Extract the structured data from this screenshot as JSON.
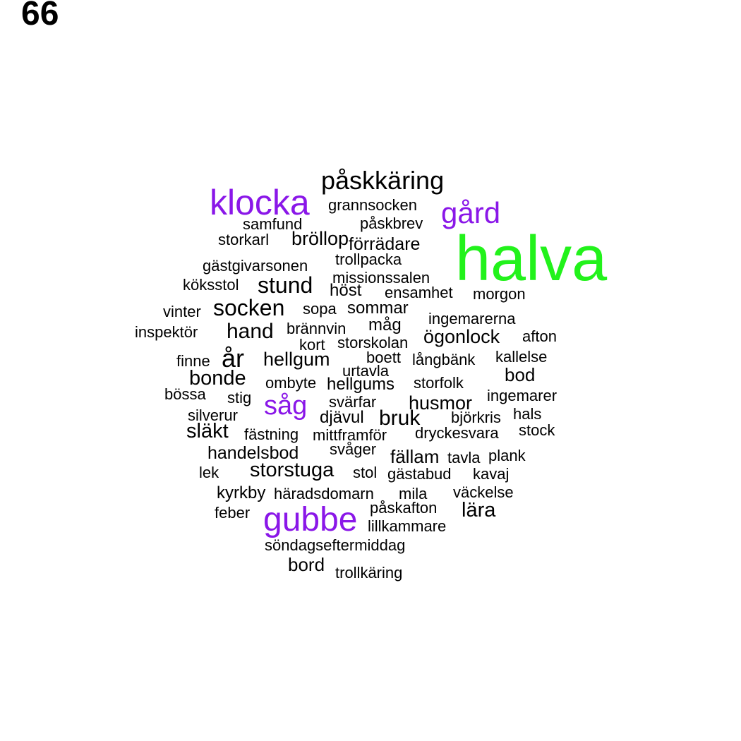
{
  "panel_label": "66",
  "colors": {
    "default": "#000000",
    "purple": "#8a17e8",
    "green": "#22f21b"
  },
  "words": [
    {
      "text": "halva",
      "color": "#22f21b"
    },
    {
      "text": "klocka",
      "color": "#8a17e8"
    },
    {
      "text": "gubbe",
      "color": "#8a17e8"
    },
    {
      "text": "gård",
      "color": "#8a17e8"
    },
    {
      "text": "såg",
      "color": "#8a17e8"
    },
    {
      "text": "påskkäring",
      "color": "#000000"
    },
    {
      "text": "grannsocken",
      "color": "#000000"
    },
    {
      "text": "samfund",
      "color": "#000000"
    },
    {
      "text": "påskbrev",
      "color": "#000000"
    },
    {
      "text": "storkarl",
      "color": "#000000"
    },
    {
      "text": "bröllop",
      "color": "#000000"
    },
    {
      "text": "förrädare",
      "color": "#000000"
    },
    {
      "text": "trollpacka",
      "color": "#000000"
    },
    {
      "text": "gästgivarsonen",
      "color": "#000000"
    },
    {
      "text": "missionssalen",
      "color": "#000000"
    },
    {
      "text": "köksstol",
      "color": "#000000"
    },
    {
      "text": "stund",
      "color": "#000000"
    },
    {
      "text": "höst",
      "color": "#000000"
    },
    {
      "text": "ensamhet",
      "color": "#000000"
    },
    {
      "text": "morgon",
      "color": "#000000"
    },
    {
      "text": "vinter",
      "color": "#000000"
    },
    {
      "text": "socken",
      "color": "#000000"
    },
    {
      "text": "sopa",
      "color": "#000000"
    },
    {
      "text": "sommar",
      "color": "#000000"
    },
    {
      "text": "ingemarerna",
      "color": "#000000"
    },
    {
      "text": "inspektör",
      "color": "#000000"
    },
    {
      "text": "hand",
      "color": "#000000"
    },
    {
      "text": "brännvin",
      "color": "#000000"
    },
    {
      "text": "måg",
      "color": "#000000"
    },
    {
      "text": "ögonlock",
      "color": "#000000"
    },
    {
      "text": "afton",
      "color": "#000000"
    },
    {
      "text": "kort",
      "color": "#000000"
    },
    {
      "text": "storskolan",
      "color": "#000000"
    },
    {
      "text": "finne",
      "color": "#000000"
    },
    {
      "text": "år",
      "color": "#000000"
    },
    {
      "text": "hellgum",
      "color": "#000000"
    },
    {
      "text": "boett",
      "color": "#000000"
    },
    {
      "text": "långbänk",
      "color": "#000000"
    },
    {
      "text": "kallelse",
      "color": "#000000"
    },
    {
      "text": "urtavla",
      "color": "#000000"
    },
    {
      "text": "bod",
      "color": "#000000"
    },
    {
      "text": "bonde",
      "color": "#000000"
    },
    {
      "text": "ombyte",
      "color": "#000000"
    },
    {
      "text": "hellgums",
      "color": "#000000"
    },
    {
      "text": "storfolk",
      "color": "#000000"
    },
    {
      "text": "bössa",
      "color": "#000000"
    },
    {
      "text": "stig",
      "color": "#000000"
    },
    {
      "text": "svärfar",
      "color": "#000000"
    },
    {
      "text": "husmor",
      "color": "#000000"
    },
    {
      "text": "ingemarer",
      "color": "#000000"
    },
    {
      "text": "silverur",
      "color": "#000000"
    },
    {
      "text": "djävul",
      "color": "#000000"
    },
    {
      "text": "bruk",
      "color": "#000000"
    },
    {
      "text": "björkris",
      "color": "#000000"
    },
    {
      "text": "hals",
      "color": "#000000"
    },
    {
      "text": "släkt",
      "color": "#000000"
    },
    {
      "text": "fästning",
      "color": "#000000"
    },
    {
      "text": "mittframför",
      "color": "#000000"
    },
    {
      "text": "dryckesvara",
      "color": "#000000"
    },
    {
      "text": "stock",
      "color": "#000000"
    },
    {
      "text": "svåger",
      "color": "#000000"
    },
    {
      "text": "handelsbod",
      "color": "#000000"
    },
    {
      "text": "fällam",
      "color": "#000000"
    },
    {
      "text": "tavla",
      "color": "#000000"
    },
    {
      "text": "plank",
      "color": "#000000"
    },
    {
      "text": "lek",
      "color": "#000000"
    },
    {
      "text": "storstuga",
      "color": "#000000"
    },
    {
      "text": "stol",
      "color": "#000000"
    },
    {
      "text": "gästabud",
      "color": "#000000"
    },
    {
      "text": "kavaj",
      "color": "#000000"
    },
    {
      "text": "kyrkby",
      "color": "#000000"
    },
    {
      "text": "häradsdomarn",
      "color": "#000000"
    },
    {
      "text": "mila",
      "color": "#000000"
    },
    {
      "text": "väckelse",
      "color": "#000000"
    },
    {
      "text": "feber",
      "color": "#000000"
    },
    {
      "text": "påskafton",
      "color": "#000000"
    },
    {
      "text": "lära",
      "color": "#000000"
    },
    {
      "text": "lillkammare",
      "color": "#000000"
    },
    {
      "text": "söndagseftermiddag",
      "color": "#000000"
    },
    {
      "text": "bord",
      "color": "#000000"
    },
    {
      "text": "trollkäring",
      "color": "#000000"
    }
  ]
}
